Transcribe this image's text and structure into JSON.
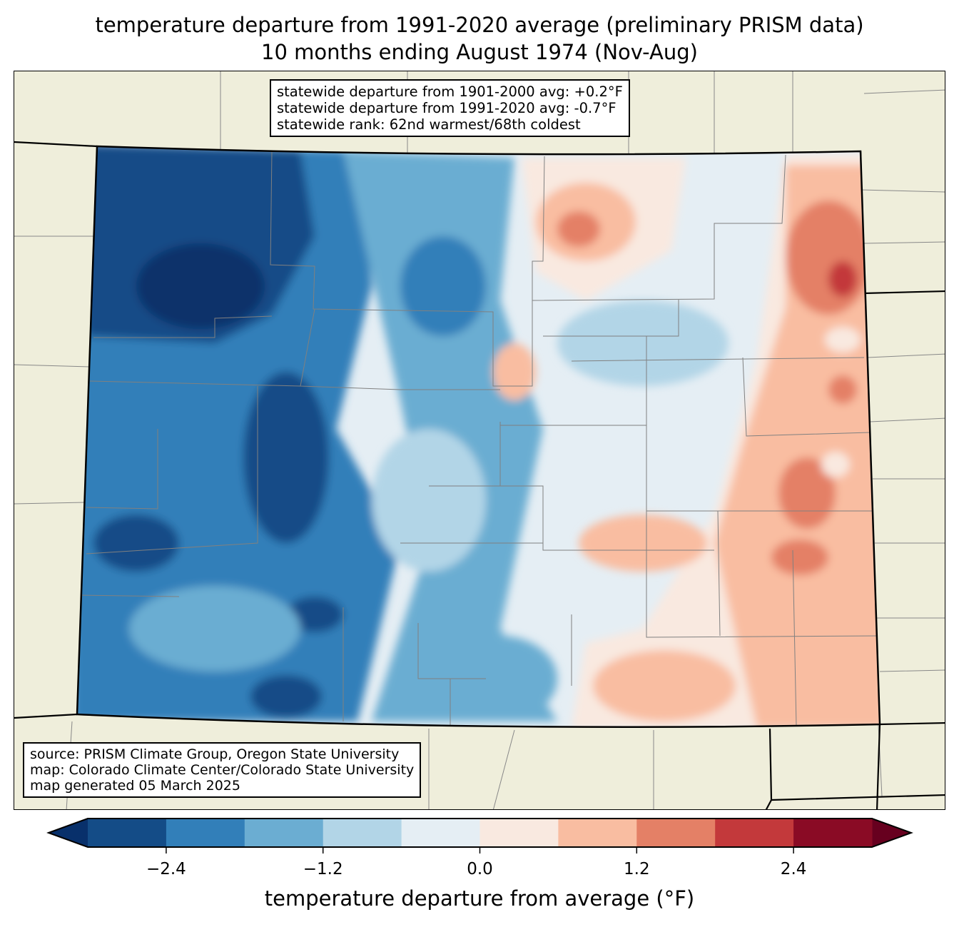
{
  "title": {
    "line1": "temperature departure from 1991-2020 average (preliminary PRISM data)",
    "line2": "10 months ending August 1974 (Nov-Aug)"
  },
  "stats_box": {
    "line1": "statewide departure from 1901-2000 avg: +0.2°F",
    "line2": "statewide departure from 1991-2020 avg: -0.7°F",
    "line3": "statewide rank: 62nd warmest/68th coldest"
  },
  "source_box": {
    "line1": "source: PRISM Climate Group, Oregon State University",
    "line2": "map: Colorado Climate Center/Colorado State University",
    "line3": "map generated 05 March 2025"
  },
  "colorbar": {
    "label": "temperature departure from average (°F)",
    "min": -3.0,
    "max": 3.0,
    "step": 0.6,
    "ticks": [
      "−2.4",
      "−1.2",
      "0.0",
      "1.2",
      "2.4"
    ],
    "tick_values": [
      -2.4,
      -1.2,
      0.0,
      1.2,
      2.4
    ],
    "under_color": "#08306b",
    "over_color": "#67001f",
    "colors": [
      "#144c87",
      "#327fb9",
      "#6badd2",
      "#b2d5e7",
      "#e5eef4",
      "#f9e9e0",
      "#f9bda1",
      "#e48066",
      "#c3393b",
      "#8a0b25"
    ]
  },
  "chart_data": {
    "type": "heatmap",
    "title": "temperature departure from 1991-2020 average (preliminary PRISM data) — 10 months ending August 1974 (Nov-Aug)",
    "region": "Colorado",
    "value_range": [
      -3.0,
      3.0
    ],
    "pattern": "Western mountains mostly -1.2 to -3.0°F below average; eastern plains 0 to +2.4°F above average",
    "statewide_departure_1991_2020": -0.7,
    "statewide_departure_1901_2000": 0.2
  }
}
